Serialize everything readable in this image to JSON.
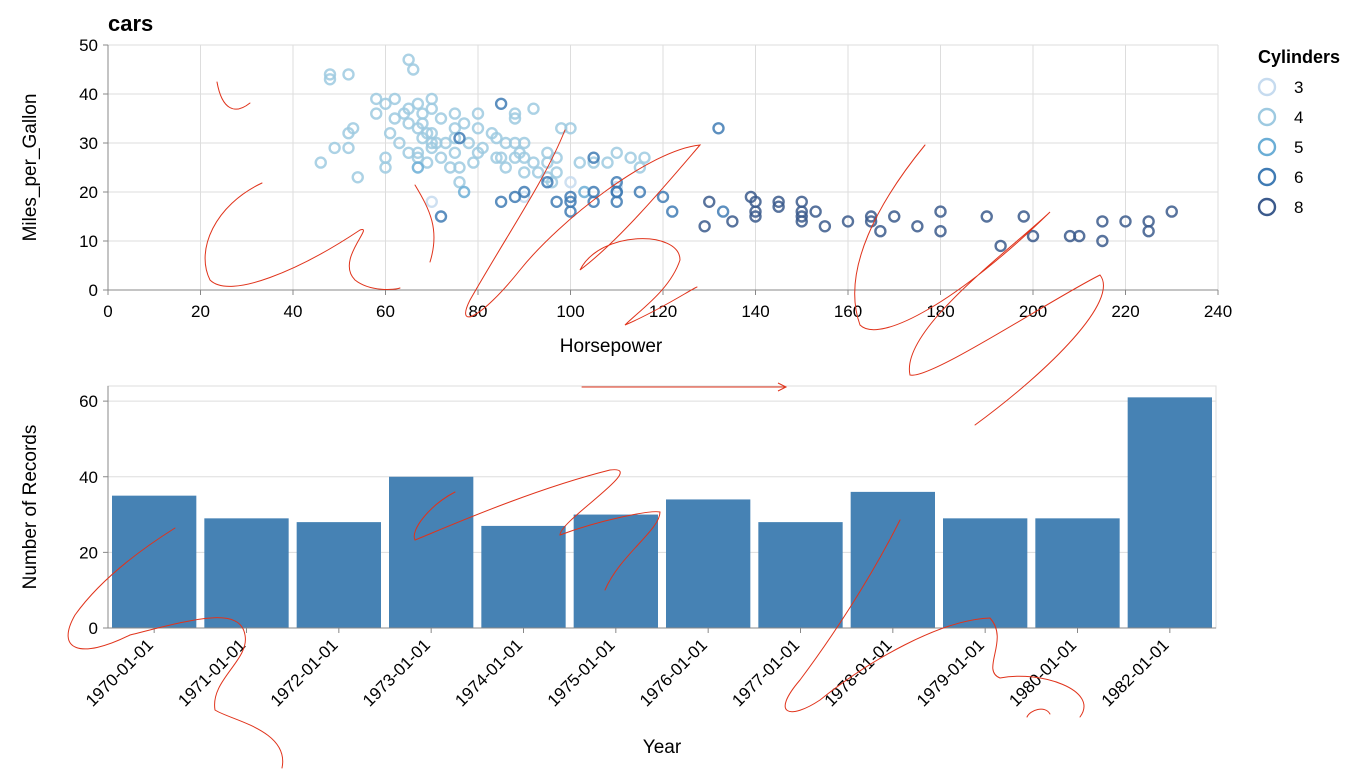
{
  "chart_data": [
    {
      "type": "scatter",
      "title": "cars",
      "xlabel": "Horsepower",
      "ylabel": "Miles_per_Gallon",
      "xlim": [
        0,
        240
      ],
      "ylim": [
        0,
        50
      ],
      "x_ticks": [
        0,
        20,
        40,
        60,
        80,
        100,
        120,
        140,
        160,
        180,
        200,
        220,
        240
      ],
      "y_ticks": [
        0,
        10,
        20,
        30,
        40,
        50
      ],
      "grid": true,
      "legend": {
        "title": "Cylinders",
        "placement": "top-right",
        "entries": [
          {
            "label": "3",
            "color": "#c6dbef"
          },
          {
            "label": "4",
            "color": "#9ecae1"
          },
          {
            "label": "5",
            "color": "#6baed6"
          },
          {
            "label": "6",
            "color": "#3f7bb4"
          },
          {
            "label": "8",
            "color": "#3b5a8c"
          }
        ]
      },
      "series": [
        {
          "name": "3",
          "points": [
            [
              70,
              18
            ],
            [
              90,
              19
            ],
            [
              100,
              22
            ],
            [
              110,
              21
            ]
          ]
        },
        {
          "name": "4",
          "points": [
            [
              46,
              26
            ],
            [
              48,
              43
            ],
            [
              48,
              44
            ],
            [
              49,
              29
            ],
            [
              52,
              44
            ],
            [
              52,
              29
            ],
            [
              52,
              32
            ],
            [
              53,
              33
            ],
            [
              54,
              23
            ],
            [
              58,
              36
            ],
            [
              58,
              39
            ],
            [
              60,
              27
            ],
            [
              60,
              25
            ],
            [
              60,
              38
            ],
            [
              61,
              32
            ],
            [
              62,
              35
            ],
            [
              62,
              39
            ],
            [
              63,
              30
            ],
            [
              64,
              36
            ],
            [
              65,
              47
            ],
            [
              65,
              37
            ],
            [
              65,
              34
            ],
            [
              65,
              28
            ],
            [
              66,
              45
            ],
            [
              67,
              38
            ],
            [
              67,
              33
            ],
            [
              67,
              28
            ],
            [
              67,
              27
            ],
            [
              68,
              31
            ],
            [
              68,
              34
            ],
            [
              68,
              36
            ],
            [
              69,
              32
            ],
            [
              69,
              26
            ],
            [
              70,
              29
            ],
            [
              70,
              32
            ],
            [
              70,
              37
            ],
            [
              70,
              39
            ],
            [
              70,
              30
            ],
            [
              71,
              30
            ],
            [
              72,
              27
            ],
            [
              72,
              35
            ],
            [
              73,
              30
            ],
            [
              74,
              25
            ],
            [
              75,
              28
            ],
            [
              75,
              33
            ],
            [
              75,
              36
            ],
            [
              75,
              31
            ],
            [
              76,
              22
            ],
            [
              76,
              25
            ],
            [
              77,
              34
            ],
            [
              78,
              30
            ],
            [
              79,
              26
            ],
            [
              80,
              28
            ],
            [
              80,
              33
            ],
            [
              80,
              36
            ],
            [
              81,
              29
            ],
            [
              83,
              32
            ],
            [
              84,
              31
            ],
            [
              84,
              27
            ],
            [
              85,
              27
            ],
            [
              86,
              25
            ],
            [
              86,
              30
            ],
            [
              88,
              30
            ],
            [
              88,
              36
            ],
            [
              88,
              27
            ],
            [
              88,
              35
            ],
            [
              89,
              28
            ],
            [
              90,
              24
            ],
            [
              90,
              27
            ],
            [
              90,
              30
            ],
            [
              92,
              37
            ],
            [
              92,
              26
            ],
            [
              93,
              24
            ],
            [
              95,
              28
            ],
            [
              95,
              23
            ],
            [
              95,
              26
            ],
            [
              96,
              22
            ],
            [
              97,
              27
            ],
            [
              97,
              24
            ],
            [
              98,
              33
            ],
            [
              100,
              33
            ],
            [
              102,
              26
            ],
            [
              105,
              26
            ],
            [
              108,
              26
            ],
            [
              110,
              28
            ],
            [
              113,
              27
            ],
            [
              115,
              25
            ],
            [
              116,
              27
            ]
          ]
        },
        {
          "name": "5",
          "points": [
            [
              67,
              25
            ],
            [
              77,
              20
            ],
            [
              103,
              20
            ]
          ]
        },
        {
          "name": "6",
          "points": [
            [
              72,
              15
            ],
            [
              76,
              31
            ],
            [
              85,
              38
            ],
            [
              85,
              18
            ],
            [
              88,
              19
            ],
            [
              90,
              20
            ],
            [
              95,
              22
            ],
            [
              97,
              18
            ],
            [
              100,
              18
            ],
            [
              100,
              19
            ],
            [
              100,
              16
            ],
            [
              105,
              18
            ],
            [
              105,
              20
            ],
            [
              105,
              27
            ],
            [
              110,
              20
            ],
            [
              110,
              22
            ],
            [
              110,
              20
            ],
            [
              110,
              18
            ],
            [
              115,
              20
            ],
            [
              120,
              19
            ],
            [
              122,
              16
            ],
            [
              132,
              33
            ],
            [
              133,
              16
            ]
          ]
        },
        {
          "name": "8",
          "points": [
            [
              130,
              18
            ],
            [
              140,
              16
            ],
            [
              140,
              18
            ],
            [
              145,
              17
            ],
            [
              150,
              15
            ],
            [
              150,
              14
            ],
            [
              153,
              16
            ],
            [
              160,
              14
            ],
            [
              165,
              15
            ],
            [
              165,
              14
            ],
            [
              167,
              12
            ],
            [
              170,
              15
            ],
            [
              175,
              13
            ],
            [
              180,
              12
            ],
            [
              180,
              16
            ],
            [
              190,
              15
            ],
            [
              193,
              9
            ],
            [
              198,
              15
            ],
            [
              200,
              11
            ],
            [
              208,
              11
            ],
            [
              210,
              11
            ],
            [
              215,
              14
            ],
            [
              215,
              10
            ],
            [
              220,
              14
            ],
            [
              225,
              14
            ],
            [
              225,
              12
            ],
            [
              230,
              16
            ],
            [
              150,
              18
            ],
            [
              140,
              15
            ],
            [
              150,
              16
            ],
            [
              145,
              18
            ],
            [
              155,
              13
            ],
            [
              139,
              19
            ],
            [
              135,
              14
            ],
            [
              129,
              13
            ]
          ]
        }
      ]
    },
    {
      "type": "bar",
      "xlabel": "Year",
      "ylabel": "Number of Records",
      "ylim": [
        0,
        64
      ],
      "y_ticks": [
        0,
        20,
        40,
        60
      ],
      "grid": true,
      "color": "#4682b4",
      "categories": [
        "1970-01-01",
        "1971-01-01",
        "1972-01-01",
        "1973-01-01",
        "1974-01-01",
        "1975-01-01",
        "1976-01-01",
        "1977-01-01",
        "1978-01-01",
        "1979-01-01",
        "1980-01-01",
        "1982-01-01"
      ],
      "values": [
        35,
        29,
        28,
        40,
        27,
        30,
        34,
        28,
        36,
        29,
        29,
        61
      ]
    }
  ]
}
